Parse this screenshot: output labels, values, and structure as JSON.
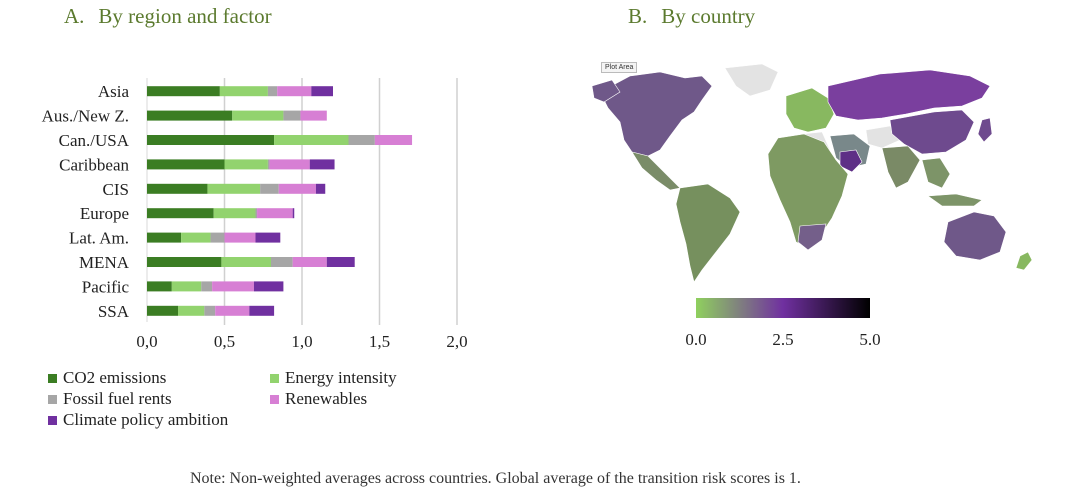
{
  "panel_a": {
    "letter": "A.",
    "title": "By region and factor"
  },
  "panel_b": {
    "letter": "B.",
    "title": "By country",
    "plot_area_label": "Plot Area"
  },
  "note": "Note: Non-weighted averages across countries. Global average of the transition risk scores is 1.",
  "colors": {
    "co2": "#3b7d23",
    "energy": "#92d36e",
    "fossil": "#a6a6a6",
    "renewables": "#d77fd4",
    "climate": "#7030a0",
    "map_low": "#8fd05e",
    "map_mid": "#7030a0",
    "map_high": "#000000",
    "map_nodata": "#e3e3e3",
    "grid": "#d0d0d0"
  },
  "chart_data": [
    {
      "type": "bar",
      "orientation": "horizontal",
      "stacked": true,
      "categories": [
        "Asia",
        "Aus./New Z.",
        "Can./USA",
        "Caribbean",
        "CIS",
        "Europe",
        "Lat. Am.",
        "MENA",
        "Pacific",
        "SSA"
      ],
      "series": [
        {
          "name": "CO2 emissions",
          "color_key": "co2",
          "values": [
            0.47,
            0.55,
            0.82,
            0.5,
            0.39,
            0.43,
            0.22,
            0.48,
            0.16,
            0.2
          ]
        },
        {
          "name": "Energy intensity",
          "color_key": "energy",
          "values": [
            0.31,
            0.33,
            0.48,
            0.28,
            0.34,
            0.27,
            0.19,
            0.32,
            0.19,
            0.17
          ]
        },
        {
          "name": "Fossil fuel rents",
          "color_key": "fossil",
          "values": [
            0.06,
            0.11,
            0.17,
            0.01,
            0.12,
            0.01,
            0.09,
            0.14,
            0.07,
            0.07
          ]
        },
        {
          "name": "Renewables",
          "color_key": "renewables",
          "values": [
            0.22,
            0.17,
            0.24,
            0.26,
            0.24,
            0.23,
            0.2,
            0.22,
            0.27,
            0.22
          ]
        },
        {
          "name": "Climate policy ambition",
          "color_key": "climate",
          "values": [
            0.14,
            0.0,
            0.0,
            0.16,
            0.06,
            0.01,
            0.16,
            0.18,
            0.19,
            0.16
          ]
        }
      ],
      "xlim": [
        0,
        2.0
      ],
      "xticks": [
        "0,0",
        "0,5",
        "1,0",
        "1,5",
        "2,0"
      ],
      "xtick_values": [
        0,
        0.5,
        1.0,
        1.5,
        2.0
      ],
      "grid": "vertical",
      "legend": "bottom"
    },
    {
      "type": "choropleth",
      "scale_min": 0.0,
      "scale_max": 5.0,
      "scale_ticks": [
        "0.0",
        "2.5",
        "5.0"
      ],
      "colorbar": "bottom"
    }
  ]
}
